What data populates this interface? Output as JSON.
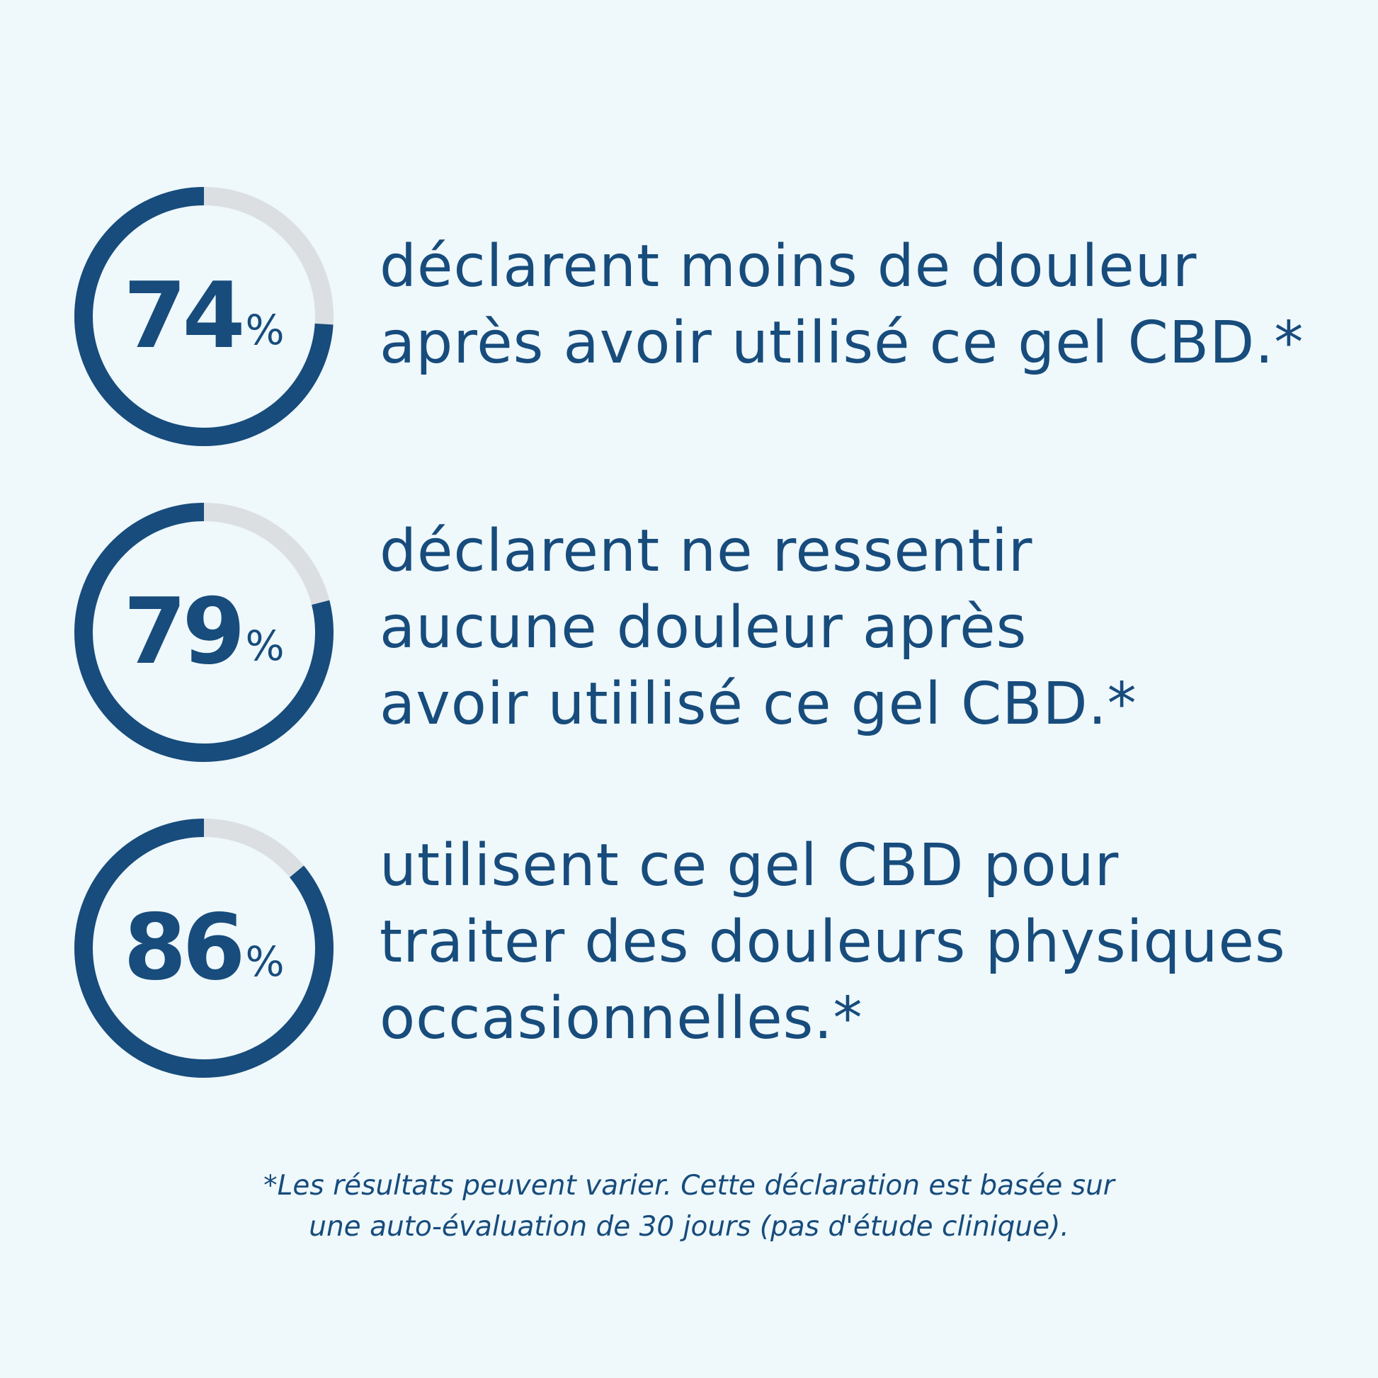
{
  "colors": {
    "background": "#eff8fb",
    "primary": "#174c7c",
    "track": "#dcdfe1"
  },
  "stats": [
    {
      "value": 74,
      "number": "74",
      "percent_sign": "%",
      "lines": [
        "déclarent moins de douleur",
        "après avoir utilisé ce gel CBD.*"
      ]
    },
    {
      "value": 79,
      "number": "79",
      "percent_sign": "%",
      "lines": [
        "déclarent ne ressentir",
        "aucune douleur après",
        "avoir utiilisé ce gel CBD.*"
      ]
    },
    {
      "value": 86,
      "number": "86",
      "percent_sign": "%",
      "lines": [
        "utilisent ce gel CBD pour",
        "traiter des douleurs physiques",
        "occasionnelles.*"
      ]
    }
  ],
  "footnote": {
    "lines": [
      "*Les résultats peuvent varier. Cette déclaration est basée sur",
      "une auto-évaluation de 30 jours (pas d'étude clinique)."
    ]
  }
}
